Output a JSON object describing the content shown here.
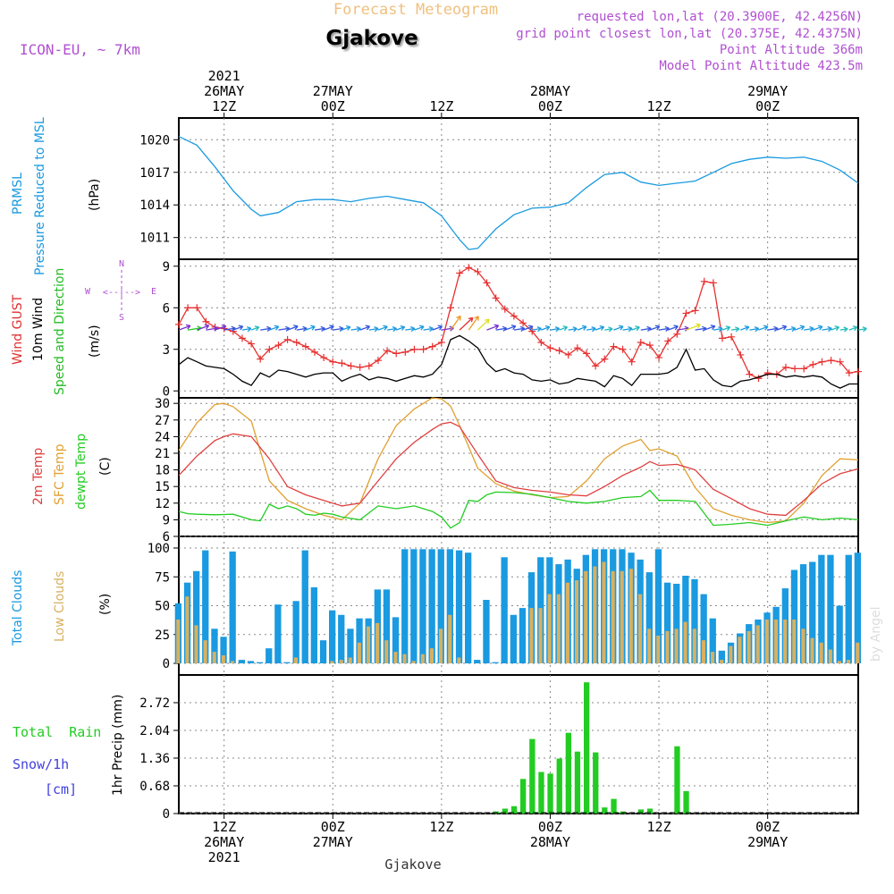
{
  "header": {
    "title": "Gjakove",
    "subtitle": "Forecast Meteogram",
    "model": "ICON-EU, ~ 7km",
    "requested": "requested lon,lat (20.3900E, 42.4256N)",
    "grid_point": "grid point closest lon,lat (20.375E, 42.4375N)",
    "point_altitude": "Point Altitude 366m",
    "model_altitude": "Model Point Altitude 423.5m",
    "watermark": "by Angel",
    "footer": "Gjakove"
  },
  "colors": {
    "pressure": "#1a9ae0",
    "gust": "#e83030",
    "wind": "#000000",
    "arrows_label": "#22bb22",
    "temp2m": "#e04040",
    "sfc": "#e0a030",
    "dewpt": "#22cc22",
    "total_clouds": "#1a9ae0",
    "low_clouds": "#d8b060",
    "rain": "#22cc22",
    "snow": "#4040e0",
    "title_orange": "#f0c080",
    "meta_purple": "#a040c0"
  },
  "time_axis": {
    "top": [
      {
        "t": 12,
        "lines": [
          "2021",
          "26MAY",
          "12Z"
        ]
      },
      {
        "t": 24,
        "lines": [
          "27MAY",
          "00Z"
        ]
      },
      {
        "t": 36,
        "lines": [
          "12Z"
        ]
      },
      {
        "t": 48,
        "lines": [
          "28MAY",
          "00Z"
        ]
      },
      {
        "t": 60,
        "lines": [
          "12Z"
        ]
      },
      {
        "t": 72,
        "lines": [
          "29MAY",
          "00Z"
        ]
      }
    ],
    "bottom": [
      {
        "t": 12,
        "lines": [
          "12Z",
          "26MAY",
          "2021"
        ]
      },
      {
        "t": 24,
        "lines": [
          "00Z",
          "27MAY"
        ]
      },
      {
        "t": 36,
        "lines": [
          "12Z"
        ]
      },
      {
        "t": 48,
        "lines": [
          "00Z",
          "28MAY"
        ]
      },
      {
        "t": 60,
        "lines": [
          "12Z"
        ]
      },
      {
        "t": 72,
        "lines": [
          "00Z",
          "29MAY"
        ]
      }
    ]
  },
  "panels": {
    "pressure": {
      "labels": [
        "PRMSL",
        "Pressure Reduced to MSL"
      ],
      "unit": "(hPa)",
      "ticks": [
        1011,
        1014,
        1017,
        1020
      ]
    },
    "wind": {
      "labels": [
        "Wind GUST",
        "10m Wind",
        "Speed and Direction"
      ],
      "unit": "(m/s)",
      "ticks": [
        0,
        3,
        6,
        9
      ],
      "compass": {
        "n": "N",
        "s": "S",
        "e": "E",
        "w": "W",
        "arrow": "<--|-->"
      }
    },
    "temp": {
      "labels": [
        "2m Temp",
        "SFC Temp",
        "dewpt Temp"
      ],
      "unit": "(C)",
      "ticks": [
        6,
        9,
        12,
        15,
        18,
        21,
        24,
        27,
        30
      ]
    },
    "clouds": {
      "labels": [
        "Total Clouds",
        "Low Clouds"
      ],
      "unit": "(%)",
      "ticks": [
        0,
        25,
        50,
        75,
        100
      ]
    },
    "precip": {
      "labels": [
        "Total  Rain",
        "Snow/1h",
        "[cm]"
      ],
      "unit": "1hr Precip (mm)",
      "ticks": [
        "0",
        "0.68",
        "1.36",
        "2.04",
        "2.72"
      ]
    }
  },
  "chart_data": {
    "type": "line",
    "title": "Gjakove Forecast Meteogram",
    "x_unit": "hours after 2021-05-26 00Z",
    "x_range": [
      7,
      82
    ],
    "series": [
      {
        "name": "PRMSL (hPa)",
        "type": "line",
        "ylim": [
          1009,
          1022
        ],
        "x": [
          7,
          9,
          11,
          13,
          15,
          16,
          18,
          20,
          22,
          24,
          26,
          28,
          30,
          32,
          34,
          36,
          38,
          39,
          40,
          42,
          44,
          46,
          48,
          50,
          52,
          54,
          56,
          58,
          60,
          62,
          64,
          66,
          68,
          70,
          72,
          74,
          76,
          78,
          80,
          82
        ],
        "y": [
          1020.3,
          1019.5,
          1017.5,
          1015.3,
          1013.6,
          1013.0,
          1013.3,
          1014.3,
          1014.5,
          1014.5,
          1014.3,
          1014.6,
          1014.8,
          1014.5,
          1014.2,
          1013.0,
          1010.8,
          1009.9,
          1010.0,
          1011.8,
          1013.1,
          1013.7,
          1013.8,
          1014.2,
          1015.6,
          1016.8,
          1017.0,
          1016.1,
          1015.8,
          1016.0,
          1016.2,
          1017.0,
          1017.8,
          1018.2,
          1018.4,
          1018.3,
          1018.4,
          1018.0,
          1017.2,
          1016.0
        ]
      },
      {
        "name": "Wind GUST (m/s)",
        "type": "line",
        "ylim": [
          -0.5,
          9.5
        ],
        "x": [
          7,
          8,
          9,
          10,
          11,
          12,
          13,
          14,
          15,
          16,
          17,
          18,
          19,
          20,
          21,
          22,
          23,
          24,
          25,
          26,
          27,
          28,
          29,
          30,
          31,
          32,
          33,
          34,
          35,
          36,
          37,
          38,
          39,
          40,
          41,
          42,
          43,
          44,
          45,
          46,
          47,
          48,
          49,
          50,
          51,
          52,
          53,
          54,
          55,
          56,
          57,
          58,
          59,
          60,
          61,
          62,
          63,
          64,
          65,
          66,
          67,
          68,
          69,
          70,
          71,
          72,
          73,
          74,
          75,
          76,
          77,
          78,
          79,
          80,
          81,
          82
        ],
        "y": [
          4.8,
          6.0,
          6.0,
          5.0,
          4.6,
          4.5,
          4.3,
          3.8,
          3.4,
          2.3,
          3.0,
          3.3,
          3.7,
          3.5,
          3.2,
          2.8,
          2.4,
          2.1,
          2.0,
          1.8,
          1.7,
          1.8,
          2.2,
          2.9,
          2.7,
          2.8,
          3.0,
          3.0,
          3.2,
          3.5,
          6.0,
          8.5,
          8.9,
          8.6,
          7.8,
          6.7,
          5.9,
          5.4,
          4.9,
          4.3,
          3.5,
          3.1,
          2.9,
          2.6,
          3.1,
          2.7,
          1.8,
          2.3,
          3.2,
          3.0,
          2.1,
          3.5,
          3.3,
          2.4,
          3.6,
          4.1,
          5.6,
          5.8,
          7.9,
          7.8,
          3.8,
          3.9,
          2.6,
          1.2,
          0.9,
          1.3,
          1.2,
          1.7,
          1.6,
          1.6,
          1.9,
          2.1,
          2.2,
          2.1,
          1.3,
          1.4
        ]
      },
      {
        "name": "10m Wind (m/s)",
        "type": "line",
        "x": [
          7,
          8,
          9,
          10,
          11,
          12,
          13,
          14,
          15,
          16,
          17,
          18,
          19,
          20,
          21,
          22,
          23,
          24,
          25,
          26,
          27,
          28,
          29,
          30,
          31,
          32,
          33,
          34,
          35,
          36,
          37,
          38,
          39,
          40,
          41,
          42,
          43,
          44,
          45,
          46,
          47,
          48,
          49,
          50,
          51,
          52,
          53,
          54,
          55,
          56,
          57,
          58,
          59,
          60,
          61,
          62,
          63,
          64,
          65,
          66,
          67,
          68,
          69,
          70,
          71,
          72,
          73,
          74,
          75,
          76,
          77,
          78,
          79,
          80,
          81,
          82
        ],
        "y": [
          1.9,
          2.4,
          2.1,
          1.8,
          1.7,
          1.6,
          1.2,
          0.7,
          0.4,
          1.3,
          1.0,
          1.5,
          1.4,
          1.2,
          1.0,
          1.2,
          1.3,
          1.3,
          0.7,
          1.0,
          1.2,
          0.8,
          1.0,
          0.9,
          0.7,
          0.9,
          1.1,
          1.0,
          1.2,
          1.9,
          3.7,
          4.0,
          3.6,
          3.1,
          2.0,
          1.4,
          1.6,
          1.3,
          1.2,
          0.8,
          0.7,
          0.8,
          0.5,
          0.6,
          0.9,
          0.8,
          0.7,
          0.3,
          1.1,
          0.9,
          0.4,
          1.2,
          1.2,
          1.2,
          1.3,
          1.7,
          3.0,
          1.5,
          1.6,
          0.8,
          0.4,
          0.3,
          0.7,
          0.8,
          1.0,
          1.2,
          1.2,
          1.0,
          1.1,
          1.0,
          1.1,
          1.0,
          0.5,
          0.2,
          0.5,
          0.5
        ]
      },
      {
        "name": "2m Temp (C)",
        "type": "line",
        "ylim": [
          6,
          31
        ],
        "x": [
          7,
          9,
          11,
          12,
          13,
          15,
          17,
          19,
          21,
          23,
          25,
          27,
          29,
          31,
          33,
          35,
          36,
          37,
          38,
          40,
          42,
          44,
          46,
          48,
          50,
          52,
          54,
          56,
          58,
          59,
          60,
          62,
          64,
          66,
          68,
          70,
          72,
          74,
          76,
          78,
          80,
          82
        ],
        "y": [
          17.0,
          20.5,
          23.3,
          24.0,
          24.5,
          24.0,
          20.0,
          15.0,
          13.5,
          12.5,
          11.5,
          12.0,
          16.0,
          20.0,
          23.0,
          25.3,
          26.3,
          26.6,
          25.8,
          20.8,
          16.0,
          14.8,
          14.3,
          14.0,
          13.5,
          13.3,
          15.0,
          17.0,
          18.5,
          19.5,
          18.8,
          19.0,
          18.0,
          14.5,
          12.8,
          11.0,
          10.0,
          9.8,
          12.5,
          15.5,
          17.3,
          18.2
        ]
      },
      {
        "name": "SFC Temp (C)",
        "type": "line",
        "x": [
          7,
          9,
          11,
          12,
          13,
          15,
          17,
          19,
          21,
          23,
          25,
          27,
          29,
          31,
          33,
          35,
          36,
          37,
          38,
          40,
          42,
          44,
          46,
          48,
          50,
          52,
          54,
          56,
          58,
          59,
          60,
          62,
          64,
          66,
          68,
          70,
          72,
          74,
          76,
          78,
          80,
          82
        ],
        "y": [
          21.5,
          26.5,
          29.8,
          30.0,
          29.4,
          26.8,
          16.0,
          12.5,
          11.0,
          9.8,
          9.0,
          12.0,
          20.0,
          26.0,
          29.0,
          31.0,
          30.8,
          29.5,
          26.0,
          18.3,
          15.5,
          14.2,
          13.5,
          13.0,
          13.2,
          16.0,
          20.0,
          22.3,
          23.5,
          21.5,
          21.8,
          20.5,
          14.8,
          11.0,
          9.8,
          9.0,
          8.5,
          8.8,
          12.0,
          17.0,
          20.0,
          19.8
        ]
      },
      {
        "name": "dewpt Temp (C)",
        "type": "line",
        "x": [
          7,
          8,
          9,
          11,
          13,
          15,
          16,
          17,
          18,
          19,
          20,
          21,
          22,
          23,
          24,
          25,
          27,
          29,
          31,
          33,
          35,
          36,
          37,
          38,
          39,
          40,
          41,
          42,
          44,
          46,
          48,
          50,
          52,
          54,
          56,
          58,
          59,
          60,
          61,
          62,
          64,
          66,
          68,
          70,
          72,
          74,
          76,
          78,
          80,
          82
        ],
        "y": [
          10.5,
          10.1,
          10.0,
          9.9,
          10.0,
          9.0,
          8.8,
          11.8,
          11.0,
          11.5,
          11.0,
          10.0,
          9.8,
          10.2,
          10.0,
          9.5,
          9.0,
          11.5,
          11.0,
          11.5,
          10.5,
          9.5,
          7.5,
          8.5,
          12.5,
          12.3,
          13.5,
          14.0,
          13.9,
          13.6,
          13.0,
          12.3,
          12.0,
          12.3,
          13.0,
          13.2,
          14.3,
          12.5,
          12.5,
          12.5,
          12.3,
          8.0,
          8.2,
          8.5,
          8.0,
          8.8,
          9.5,
          9.0,
          9.3,
          9.0
        ]
      },
      {
        "name": "Total Clouds (%)",
        "type": "bar",
        "ylim": [
          0,
          100
        ],
        "x": [
          7,
          8,
          9,
          10,
          11,
          12,
          13,
          14,
          15,
          16,
          17,
          18,
          19,
          20,
          21,
          22,
          23,
          24,
          25,
          26,
          27,
          28,
          29,
          30,
          31,
          32,
          33,
          34,
          35,
          36,
          37,
          38,
          39,
          40,
          41,
          42,
          43,
          44,
          45,
          46,
          47,
          48,
          49,
          50,
          51,
          52,
          53,
          54,
          55,
          56,
          57,
          58,
          59,
          60,
          61,
          62,
          63,
          64,
          65,
          66,
          67,
          68,
          69,
          70,
          71,
          72,
          73,
          74,
          75,
          76,
          77,
          78,
          79,
          80,
          81,
          82
        ],
        "y": [
          52,
          70,
          80,
          98,
          30,
          23,
          97,
          3,
          2,
          1,
          13,
          51,
          1,
          54,
          98,
          66,
          20,
          46,
          42,
          30,
          39,
          39,
          64,
          64,
          40,
          99,
          99,
          99,
          99,
          99,
          99,
          98,
          96,
          3,
          55,
          1,
          92,
          42,
          48,
          79,
          92,
          92,
          86,
          90,
          82,
          94,
          99,
          99,
          99,
          99,
          96,
          90,
          79,
          99,
          70,
          69,
          76,
          73,
          60,
          39,
          11,
          18,
          26,
          34,
          38,
          44,
          49,
          65,
          81,
          86,
          88,
          94,
          94,
          50,
          94,
          96
        ]
      },
      {
        "name": "Low Clouds (%)",
        "type": "bar",
        "x": [
          7,
          8,
          9,
          10,
          11,
          12,
          13,
          14,
          15,
          16,
          17,
          18,
          19,
          20,
          21,
          22,
          23,
          24,
          25,
          26,
          27,
          28,
          29,
          30,
          31,
          32,
          33,
          34,
          35,
          36,
          37,
          38,
          39,
          40,
          41,
          42,
          43,
          44,
          45,
          46,
          47,
          48,
          49,
          50,
          51,
          52,
          53,
          54,
          55,
          56,
          57,
          58,
          59,
          60,
          61,
          62,
          63,
          64,
          65,
          66,
          67,
          68,
          69,
          70,
          71,
          72,
          73,
          74,
          75,
          76,
          77,
          78,
          79,
          80,
          81,
          82
        ],
        "y": [
          38,
          58,
          33,
          20,
          10,
          7,
          2,
          0,
          0,
          0,
          0,
          0,
          0,
          5,
          0,
          0,
          0,
          2,
          3,
          5,
          18,
          32,
          35,
          20,
          10,
          8,
          2,
          8,
          13,
          30,
          42,
          5,
          0,
          0,
          0,
          0,
          0,
          0,
          0,
          48,
          48,
          60,
          60,
          70,
          72,
          80,
          84,
          88,
          80,
          80,
          82,
          60,
          30,
          24,
          28,
          30,
          36,
          30,
          20,
          10,
          3,
          15,
          23,
          28,
          33,
          38,
          38,
          38,
          38,
          30,
          22,
          18,
          12,
          2,
          3,
          18
        ]
      },
      {
        "name": "1hr Precip (mm)",
        "type": "bar",
        "ylim": [
          0,
          3.4
        ],
        "x": [
          42,
          43,
          44,
          45,
          46,
          47,
          48,
          49,
          50,
          51,
          52,
          53,
          54,
          55,
          56,
          57,
          58,
          59,
          60,
          61,
          62,
          63
        ],
        "y": [
          0.05,
          0.12,
          0.18,
          0.85,
          1.83,
          1.02,
          0.98,
          1.35,
          1.98,
          1.52,
          3.22,
          1.5,
          0.15,
          0.36,
          0.05,
          0.0,
          0.1,
          0.12,
          0.0,
          0.0,
          1.65,
          0.55
        ]
      }
    ]
  }
}
